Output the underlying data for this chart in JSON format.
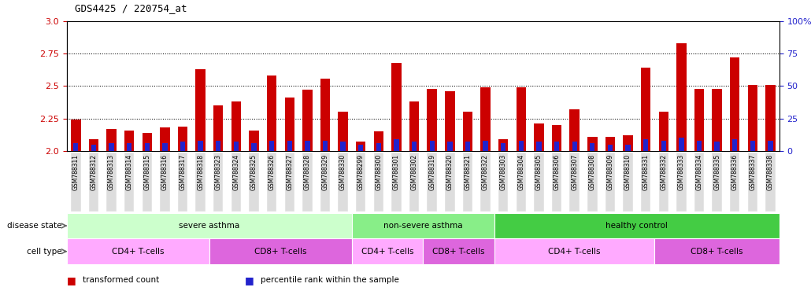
{
  "title": "GDS4425 / 220754_at",
  "samples": [
    "GSM788311",
    "GSM788312",
    "GSM788313",
    "GSM788314",
    "GSM788315",
    "GSM788316",
    "GSM788317",
    "GSM788318",
    "GSM788323",
    "GSM788324",
    "GSM788325",
    "GSM788326",
    "GSM788327",
    "GSM788328",
    "GSM788329",
    "GSM788330",
    "GSM788299",
    "GSM788300",
    "GSM788301",
    "GSM788302",
    "GSM788319",
    "GSM788320",
    "GSM788321",
    "GSM788322",
    "GSM788303",
    "GSM788304",
    "GSM788305",
    "GSM788306",
    "GSM788307",
    "GSM788308",
    "GSM788309",
    "GSM788310",
    "GSM788331",
    "GSM788332",
    "GSM788333",
    "GSM788334",
    "GSM788335",
    "GSM788336",
    "GSM788337",
    "GSM788338"
  ],
  "transformed_count": [
    2.24,
    2.09,
    2.17,
    2.16,
    2.14,
    2.18,
    2.19,
    2.63,
    2.35,
    2.38,
    2.16,
    2.58,
    2.41,
    2.47,
    2.56,
    2.3,
    2.07,
    2.15,
    2.68,
    2.38,
    2.48,
    2.46,
    2.3,
    2.49,
    2.09,
    2.49,
    2.21,
    2.2,
    2.32,
    2.11,
    2.11,
    2.12,
    2.64,
    2.3,
    2.83,
    2.48,
    2.48,
    2.72,
    2.51,
    2.51
  ],
  "percentile_rank": [
    6,
    5,
    6,
    6,
    6,
    6,
    7,
    8,
    8,
    7,
    6,
    8,
    8,
    8,
    8,
    7,
    5,
    6,
    9,
    7,
    8,
    7,
    7,
    8,
    6,
    8,
    7,
    7,
    7,
    6,
    5,
    5,
    9,
    8,
    10,
    8,
    7,
    9,
    8,
    8
  ],
  "ymin": 2.0,
  "ymax": 3.0,
  "yticks_left": [
    2.0,
    2.25,
    2.5,
    2.75,
    3.0
  ],
  "yticks_right": [
    0,
    25,
    50,
    75,
    100
  ],
  "bar_color": "#cc0000",
  "pct_color": "#2222cc",
  "disease_state_groups": [
    {
      "label": "severe asthma",
      "start": 0,
      "end": 16,
      "color": "#ccffcc"
    },
    {
      "label": "non-severe asthma",
      "start": 16,
      "end": 24,
      "color": "#88ee88"
    },
    {
      "label": "healthy control",
      "start": 24,
      "end": 40,
      "color": "#44cc44"
    }
  ],
  "cell_type_groups": [
    {
      "label": "CD4+ T-cells",
      "start": 0,
      "end": 8,
      "color": "#ffaaff"
    },
    {
      "label": "CD8+ T-cells",
      "start": 8,
      "end": 16,
      "color": "#dd66dd"
    },
    {
      "label": "CD4+ T-cells",
      "start": 16,
      "end": 20,
      "color": "#ffaaff"
    },
    {
      "label": "CD8+ T-cells",
      "start": 20,
      "end": 24,
      "color": "#dd66dd"
    },
    {
      "label": "CD4+ T-cells",
      "start": 24,
      "end": 33,
      "color": "#ffaaff"
    },
    {
      "label": "CD8+ T-cells",
      "start": 33,
      "end": 40,
      "color": "#dd66dd"
    }
  ],
  "bg_color": "#ffffff",
  "spine_color": "#000000",
  "label_fontsize": 7.5,
  "tick_fontsize": 8,
  "sample_fontsize": 5.5,
  "title_fontsize": 9,
  "bar_width": 0.55,
  "pct_bar_width": 0.28
}
